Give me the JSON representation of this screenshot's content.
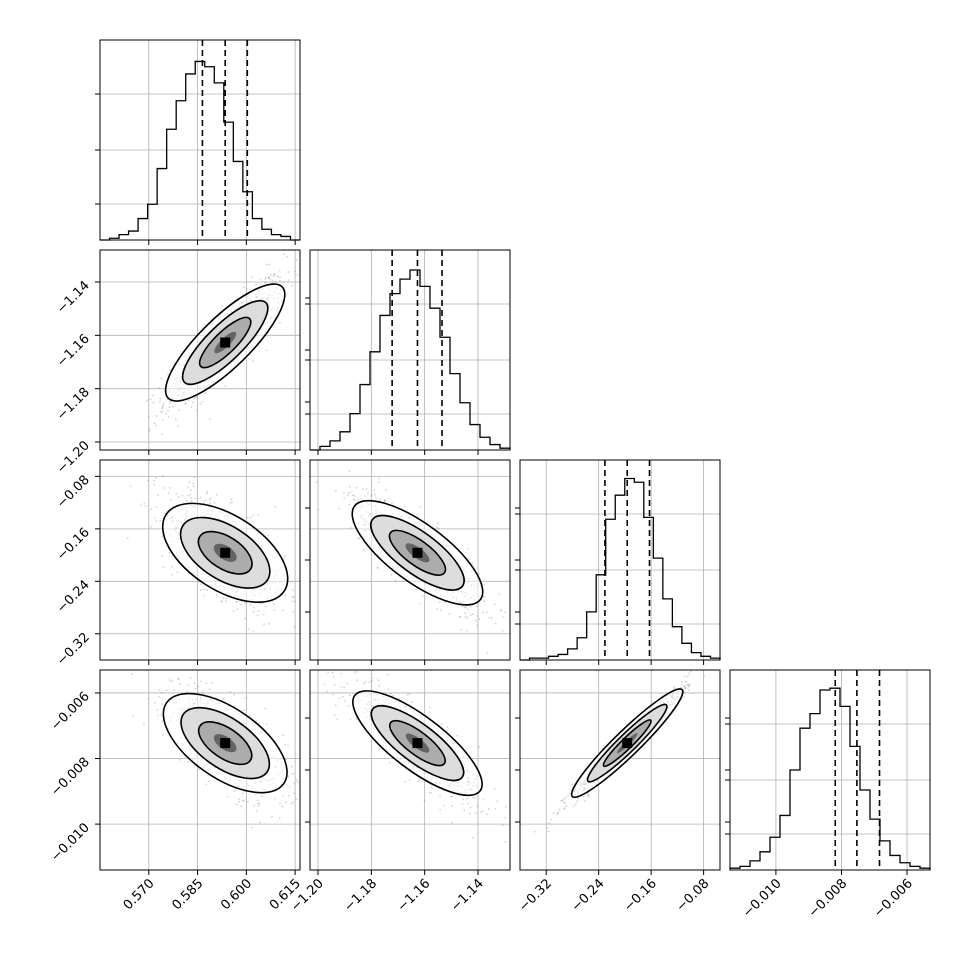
{
  "chart_data": {
    "type": "corner",
    "parameters": [
      {
        "ticks": [
          "0.570",
          "0.585",
          "0.600",
          "0.615"
        ],
        "tick_values": [
          0.57,
          0.585,
          0.6,
          0.615
        ],
        "range": [
          0.555,
          0.6165
        ],
        "quantiles": [
          0.5865,
          0.5935,
          0.6003
        ]
      },
      {
        "ticks": [
          "−1.20",
          "−1.18",
          "−1.16",
          "−1.14"
        ],
        "tick_values": [
          -1.2,
          -1.18,
          -1.16,
          -1.14
        ],
        "range": [
          -1.203,
          -1.128
        ],
        "quantiles": [
          -1.1722,
          -1.1627,
          -1.1535
        ]
      },
      {
        "ticks": [
          "−0.32",
          "−0.24",
          "−0.16",
          "−0.08"
        ],
        "tick_values": [
          -0.32,
          -0.24,
          -0.16,
          -0.08
        ],
        "range": [
          -0.36,
          -0.055
        ],
        "quantiles": [
          -0.2305,
          -0.1965,
          -0.1625
        ]
      },
      {
        "ticks": [
          "−0.010",
          "−0.008",
          "−0.006"
        ],
        "tick_values": [
          -0.01,
          -0.008,
          -0.006
        ],
        "range": [
          -0.0114,
          -0.0053
        ],
        "quantiles": [
          -0.00819,
          -0.00753,
          -0.00684
        ]
      }
    ],
    "row_ticks": {
      "1": {
        "ticks": [
          "−1.14",
          "−1.16",
          "−1.18",
          "−1.20"
        ],
        "values": [
          -1.14,
          -1.16,
          -1.18,
          -1.2
        ]
      },
      "2": {
        "ticks": [
          "−0.08",
          "−0.16",
          "−0.24",
          "−0.32"
        ],
        "values": [
          -0.08,
          -0.16,
          -0.24,
          -0.32
        ]
      },
      "3": {
        "ticks": [
          "−0.006",
          "−0.008",
          "−0.010"
        ],
        "values": [
          -0.006,
          -0.008,
          -0.01
        ]
      }
    },
    "histograms": [
      {
        "counts": [
          0,
          1,
          3,
          5,
          12,
          20,
          40,
          62,
          78,
          93,
          100,
          97,
          88,
          66,
          44,
          27,
          12,
          6,
          3,
          2,
          0
        ],
        "ymax": 112
      },
      {
        "counts": [
          0,
          2,
          5,
          10,
          20,
          36,
          54,
          74,
          86,
          94,
          99,
          90,
          78,
          62,
          42,
          26,
          14,
          7,
          3,
          1
        ],
        "ymax": 110
      },
      {
        "counts": [
          0,
          1,
          1,
          2,
          3,
          6,
          12,
          26,
          46,
          76,
          89,
          98,
          96,
          77,
          55,
          33,
          18,
          9,
          4,
          2,
          1
        ],
        "ymax": 108
      },
      {
        "counts": [
          1,
          2,
          5,
          10,
          18,
          30,
          55,
          78,
          86,
          99,
          100,
          90,
          68,
          44,
          28,
          16,
          8,
          4,
          2,
          1
        ],
        "ymax": 110
      }
    ],
    "correlations": {
      "1_0": 0.88,
      "2_0": -0.65,
      "2_1": -0.83,
      "3_0": -0.7,
      "3_1": -0.86,
      "3_2": 0.98
    },
    "grid": true,
    "colors": {
      "line": "#000000",
      "points": "#808080",
      "grid": "#b0b0b0"
    }
  }
}
